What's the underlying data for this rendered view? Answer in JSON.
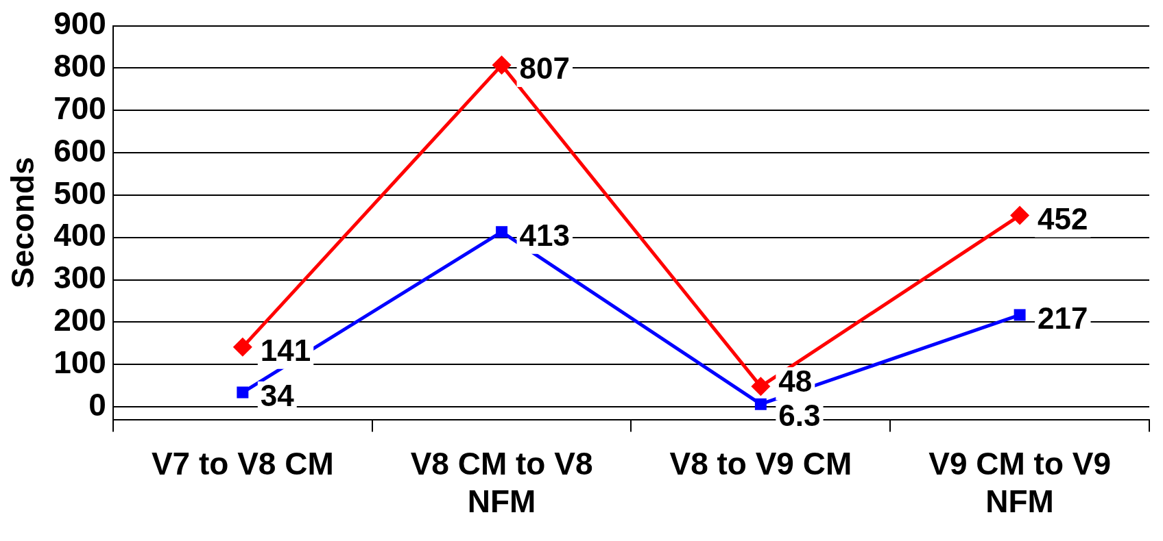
{
  "chart_data": {
    "type": "line",
    "ylabel": "Seconds",
    "categories": [
      "V7 to V8 CM",
      "V8 CM to V8 NFM",
      "V8 to V9 CM",
      "V9 CM to V9 NFM"
    ],
    "series": [
      {
        "color": "#ff0000",
        "marker": "diamond",
        "values": [
          141,
          807,
          48,
          452
        ]
      },
      {
        "color": "#0000ff",
        "marker": "square",
        "values": [
          34,
          413,
          6.3,
          217
        ]
      }
    ],
    "ylim": [
      -30,
      900
    ],
    "yticks": [
      0,
      100,
      200,
      300,
      400,
      500,
      600,
      700,
      800,
      900
    ],
    "grid": "y",
    "legend": false,
    "data_labels": true
  }
}
